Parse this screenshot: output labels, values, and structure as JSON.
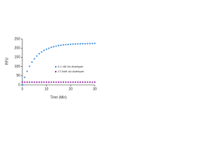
{
  "chart_data": {
    "type": "scatter",
    "x": [
      0,
      1,
      2,
      3,
      4,
      5,
      6,
      7,
      8,
      9,
      10,
      11,
      12,
      13,
      14,
      15,
      16,
      17,
      18,
      19,
      20,
      21,
      22,
      23,
      24,
      25,
      26,
      27,
      28,
      29,
      30
    ],
    "series": [
      {
        "name": "0.1 nM Ub-Aldehyde",
        "color": "#3d8fe0",
        "values": [
          0,
          41,
          74,
          101,
          124,
          142,
          157,
          170,
          179,
          188,
          194,
          199,
          205,
          208,
          211,
          214,
          216,
          218,
          219,
          220,
          221,
          222,
          223,
          223,
          224,
          224,
          224,
          225,
          225,
          225,
          226
        ]
      },
      {
        "name": "17.5nM Ub-Aldehyde",
        "color": "#9b2aa6",
        "values": [
          15,
          15,
          15,
          15,
          15,
          15,
          15,
          15,
          15,
          15,
          15,
          15,
          15,
          15,
          15,
          15,
          15,
          15,
          15,
          15,
          15,
          15,
          15,
          15,
          15,
          15,
          15,
          15,
          15,
          15,
          15
        ]
      }
    ],
    "xlabel": "Time (Min)",
    "ylabel": "RFU",
    "xlim": [
      0,
      30
    ],
    "xticks": [
      0,
      10,
      20,
      30
    ],
    "ylim": [
      0,
      250
    ],
    "yticks": [
      0,
      50,
      100,
      150,
      200,
      250
    ],
    "legend": "lower right"
  }
}
